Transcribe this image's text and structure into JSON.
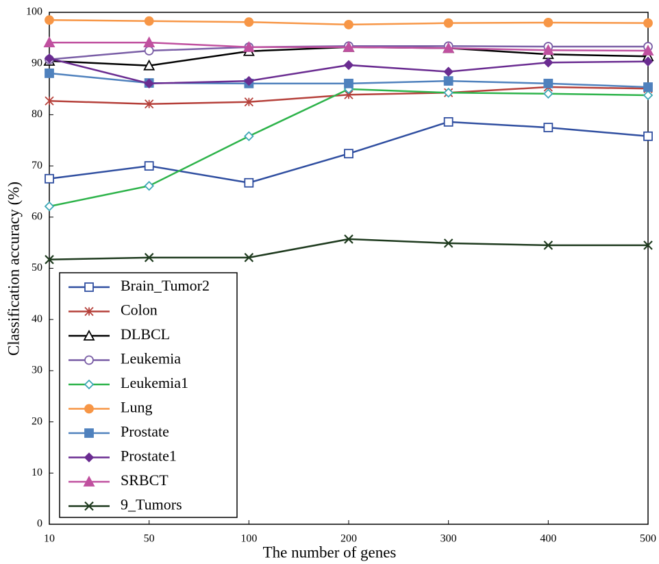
{
  "chart_data": {
    "type": "line",
    "x_label": "The number of genes",
    "y_label": "Classification accuracy (%)",
    "categories": [
      "10",
      "50",
      "100",
      "200",
      "300",
      "400",
      "500"
    ],
    "ylim": [
      0,
      100
    ],
    "yticks": [
      0,
      10,
      20,
      30,
      40,
      50,
      60,
      70,
      80,
      90,
      100
    ],
    "legend": "lower-left",
    "series": [
      {
        "name": "Brain_Tumor2",
        "color": "#2f4ea0",
        "marker": "square-open",
        "values": [
          67.5,
          70.0,
          66.7,
          72.4,
          78.6,
          77.5,
          75.8
        ]
      },
      {
        "name": "Colon",
        "color": "#b5403a",
        "marker": "asterisk",
        "values": [
          82.7,
          82.1,
          82.5,
          83.9,
          84.3,
          85.4,
          85.1
        ]
      },
      {
        "name": "DLBCL",
        "color": "#000000",
        "marker": "triangle-open",
        "values": [
          90.5,
          89.6,
          92.4,
          93.2,
          93.0,
          91.8,
          91.4
        ]
      },
      {
        "name": "Leukemia",
        "color": "#7a5ea6",
        "marker": "circle-open",
        "values": [
          90.8,
          92.5,
          93.2,
          93.4,
          93.4,
          93.3,
          93.3
        ]
      },
      {
        "name": "Leukemia1",
        "color": "#2db34a",
        "marker_color": "#3aa6b5",
        "marker": "diamond-open",
        "values": [
          62.1,
          66.1,
          75.8,
          85.0,
          84.3,
          84.1,
          83.8
        ]
      },
      {
        "name": "Lung",
        "color": "#f79646",
        "marker": "circle",
        "values": [
          98.5,
          98.3,
          98.1,
          97.6,
          97.9,
          98.0,
          97.9
        ]
      },
      {
        "name": "Prostate",
        "color": "#4f81bd",
        "marker": "square",
        "values": [
          88.1,
          86.2,
          86.1,
          86.1,
          86.6,
          86.1,
          85.4
        ]
      },
      {
        "name": "Prostate1",
        "color": "#6a2c91",
        "marker": "diamond",
        "values": [
          91.0,
          86.1,
          86.6,
          89.7,
          88.4,
          90.2,
          90.4
        ]
      },
      {
        "name": "SRBCT",
        "color": "#c0509f",
        "marker": "triangle",
        "values": [
          94.1,
          94.1,
          93.2,
          93.2,
          93.0,
          92.6,
          92.5
        ]
      },
      {
        "name": "9_Tumors",
        "color": "#1e3a1e",
        "marker": "x",
        "values": [
          51.7,
          52.1,
          52.1,
          55.7,
          54.9,
          54.5,
          54.5
        ]
      }
    ]
  }
}
